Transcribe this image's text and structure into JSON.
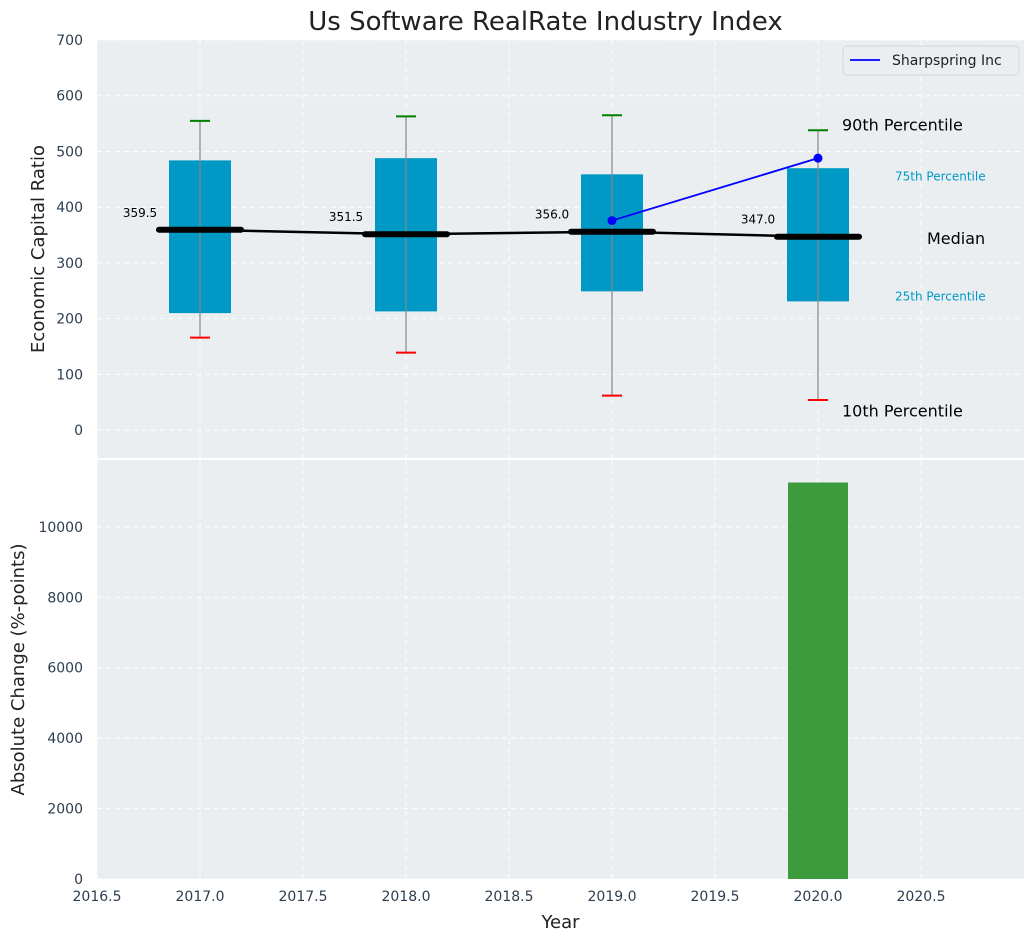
{
  "chart_data": [
    {
      "type": "box",
      "title": "Us Software RealRate Industry Index",
      "ylabel": "Economic Capital Ratio",
      "xlim": [
        2016.5,
        2021.0
      ],
      "ylim": [
        -50,
        700
      ],
      "yticks": [
        0,
        100,
        200,
        300,
        400,
        500,
        600,
        700
      ],
      "grid": true,
      "legend_position": "top-right",
      "colors": {
        "box": "#0099c6",
        "median": "#000000",
        "p90_cap": "#008000",
        "p10_cap": "#ff0000",
        "whisker": "#888888",
        "company": "#0000ff",
        "background": "#eaeef0"
      },
      "boxes": [
        {
          "x": 2017,
          "p10": 166,
          "p25": 210,
          "median": 359.5,
          "p75": 484,
          "p90": 555,
          "median_label": "359.5"
        },
        {
          "x": 2018,
          "p10": 139,
          "p25": 213,
          "median": 351.5,
          "p75": 488,
          "p90": 563,
          "median_label": "351.5"
        },
        {
          "x": 2019,
          "p10": 62,
          "p25": 249,
          "median": 356.0,
          "p75": 459,
          "p90": 565,
          "median_label": "356.0"
        },
        {
          "x": 2020,
          "p10": 54,
          "p25": 231,
          "median": 347.0,
          "p75": 470,
          "p90": 538,
          "median_label": "347.0"
        }
      ],
      "series": [
        {
          "name": "Sharpspring Inc",
          "x": [
            2019,
            2020
          ],
          "values": [
            376,
            488
          ]
        }
      ],
      "annotations": {
        "p90": "90th Percentile",
        "p75": "75th Percentile",
        "median": "Median",
        "p25": "25th Percentile",
        "p10": "10th Percentile"
      }
    },
    {
      "type": "bar",
      "xlabel": "Year",
      "ylabel": "Absolute Change (%-points)",
      "xlim": [
        2016.5,
        2021.0
      ],
      "ylim": [
        0,
        11900
      ],
      "xticks": [
        2016.5,
        2017.0,
        2017.5,
        2018.0,
        2018.5,
        2019.0,
        2019.5,
        2020.0,
        2020.5
      ],
      "xtick_labels": [
        "2016.5",
        "2017.0",
        "2017.5",
        "2018.0",
        "2018.5",
        "2019.0",
        "2019.5",
        "2020.0",
        "2020.5"
      ],
      "yticks": [
        0,
        2000,
        4000,
        6000,
        8000,
        10000
      ],
      "grid": true,
      "bars": [
        {
          "x": 2020,
          "value": 11260,
          "color": "#3c9b3c"
        }
      ]
    }
  ]
}
